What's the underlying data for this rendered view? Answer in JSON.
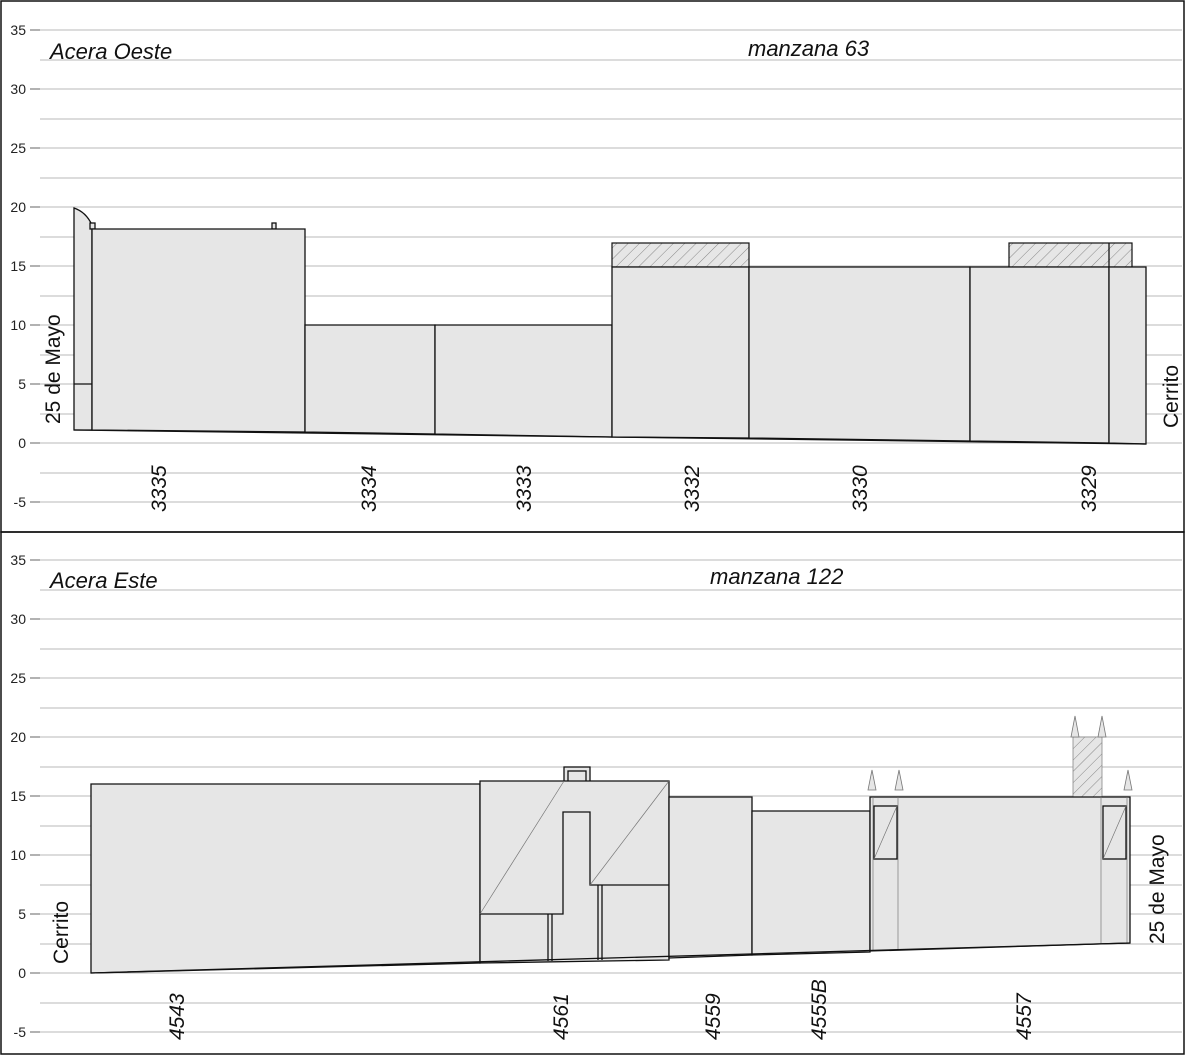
{
  "axis": {
    "ticks": [
      "35",
      "30",
      "25",
      "20",
      "15",
      "10",
      "5",
      "0",
      "-5"
    ]
  },
  "panel_top": {
    "side_label": "Acera Oeste",
    "block_label": "manzana 63",
    "street_left": "25 de Mayo",
    "street_right": "Cerrito",
    "lots": [
      "3335",
      "3334",
      "3333",
      "3332",
      "3330",
      "3329"
    ]
  },
  "panel_bottom": {
    "side_label": "Acera Este",
    "block_label": "manzana 122",
    "street_left": "Cerrito",
    "street_right": "25 de Mayo",
    "lots": [
      "4543",
      "4561",
      "4559",
      "4555B",
      "4557"
    ]
  }
}
